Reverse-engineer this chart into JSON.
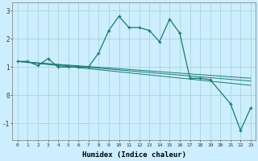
{
  "xlabel": "Humidex (Indice chaleur)",
  "bg_color": "#cceeff",
  "grid_color": "#aad4d4",
  "line_color": "#1a7a6e",
  "x_data": [
    0,
    1,
    2,
    3,
    4,
    5,
    6,
    7,
    8,
    9,
    10,
    11,
    12,
    13,
    14,
    15,
    16,
    17,
    18,
    19,
    20,
    21,
    22,
    23
  ],
  "y_main": [
    1.2,
    1.2,
    1.05,
    1.3,
    1.0,
    1.0,
    1.0,
    1.0,
    1.5,
    2.3,
    2.8,
    2.4,
    2.4,
    2.3,
    1.9,
    2.7,
    2.2,
    0.6,
    0.6,
    0.55,
    null,
    -0.3,
    -1.25,
    -0.45
  ],
  "reg_lines": [
    [
      1.2,
      0.6
    ],
    [
      1.2,
      0.5
    ],
    [
      1.2,
      0.35
    ]
  ],
  "ylim": [
    -1.6,
    3.3
  ],
  "xlim": [
    -0.5,
    23.5
  ],
  "yticks": [
    -1,
    0,
    1,
    2,
    3
  ],
  "xticks": [
    0,
    1,
    2,
    3,
    4,
    5,
    6,
    7,
    8,
    9,
    10,
    11,
    12,
    13,
    14,
    15,
    16,
    17,
    18,
    19,
    20,
    21,
    22,
    23
  ]
}
